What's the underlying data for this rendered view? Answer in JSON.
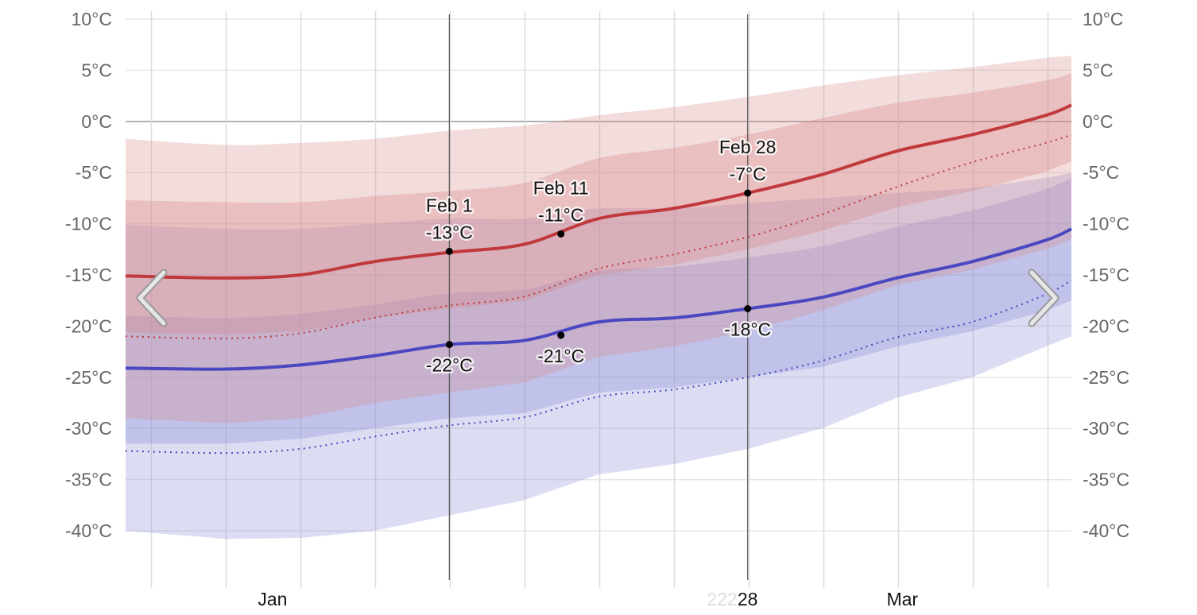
{
  "chart_data": {
    "type": "area",
    "title": "",
    "xlabel": "",
    "ylabel": "",
    "ylim": [
      -40,
      10
    ],
    "y_ticks": [
      "10°C",
      "5°C",
      "0°C",
      "-5°C",
      "-10°C",
      "-15°C",
      "-20°C",
      "-25°C",
      "-30°C",
      "-35°C",
      "-40°C"
    ],
    "y_tick_values": [
      10,
      5,
      0,
      -5,
      -10,
      -15,
      -20,
      -25,
      -30,
      -35,
      -40
    ],
    "x_ticks": [
      {
        "label": "Jan",
        "day": 16
      },
      {
        "label": "28",
        "day": 59,
        "ghost": "222"
      },
      {
        "label": "Mar",
        "day": 73
      }
    ],
    "x_day_range": [
      2.7,
      88.3
    ],
    "days": [
      2.7,
      11.8,
      18.5,
      25.2,
      32,
      38.8,
      45.5,
      52.3,
      59,
      65.7,
      72.5,
      79.3,
      86,
      88.3
    ],
    "series": [
      {
        "name": "high_p90",
        "values": [
          -1.7,
          -2.3,
          -2.1,
          -1.7,
          -0.9,
          -0.4,
          0.6,
          1.4,
          2.4,
          3.5,
          4.5,
          5.3,
          6.2,
          6.4
        ]
      },
      {
        "name": "high_p75",
        "values": [
          -7.7,
          -7.9,
          -7.9,
          -7.3,
          -6.8,
          -6,
          -3.6,
          -2.6,
          -1.3,
          0.3,
          1.8,
          2.8,
          4,
          4.7
        ]
      },
      {
        "name": "high_avg",
        "values": [
          -15.1,
          -15.3,
          -15,
          -13.7,
          -12.8,
          -12,
          -9.5,
          -8.5,
          -7,
          -5.2,
          -2.9,
          -1.3,
          0.6,
          1.6
        ]
      },
      {
        "name": "high_p25",
        "values": [
          -20.6,
          -20.8,
          -20.5,
          -19.2,
          -18.3,
          -17.5,
          -15,
          -14,
          -12.5,
          -10.7,
          -8.4,
          -6.8,
          -4.9,
          -3.9
        ]
      },
      {
        "name": "high_p10",
        "values": [
          -29,
          -29.5,
          -29,
          -27.5,
          -26.5,
          -25.5,
          -23,
          -22,
          -20.5,
          -18.5,
          -16,
          -14.5,
          -12.5,
          -11.5
        ]
      },
      {
        "name": "high_dotted",
        "values": [
          -21,
          -21.2,
          -20.7,
          -19.2,
          -18,
          -17.1,
          -14.4,
          -13,
          -11.3,
          -9.1,
          -6.4,
          -4,
          -2.1,
          -1.3
        ]
      },
      {
        "name": "low_p90",
        "values": [
          -10.1,
          -10.5,
          -10.5,
          -10,
          -9.5,
          -9.5,
          -8.5,
          -8.5,
          -8,
          -7.5,
          -7,
          -6.5,
          -5.5,
          -5
        ]
      },
      {
        "name": "low_p75",
        "values": [
          -19,
          -19.2,
          -18.8,
          -17.9,
          -16.8,
          -16.4,
          -14.6,
          -14.2,
          -13.3,
          -12.2,
          -10.3,
          -8.7,
          -6.6,
          -5.5
        ]
      },
      {
        "name": "low_avg",
        "values": [
          -24.1,
          -24.2,
          -23.8,
          -22.9,
          -21.8,
          -21.4,
          -19.6,
          -19.2,
          -18.3,
          -17.2,
          -15.3,
          -13.7,
          -11.6,
          -10.5
        ]
      },
      {
        "name": "low_p25",
        "values": [
          -31.5,
          -31.5,
          -31,
          -30,
          -29,
          -28.5,
          -26.5,
          -26,
          -25,
          -24,
          -22,
          -20.5,
          -18.5,
          -17.5
        ]
      },
      {
        "name": "low_p10",
        "values": [
          -40,
          -40.8,
          -40.7,
          -40,
          -38.5,
          -37,
          -34.5,
          -33.5,
          -32,
          -30,
          -27,
          -25,
          -22,
          -21
        ]
      },
      {
        "name": "low_dotted",
        "values": [
          -32.2,
          -32.4,
          -32,
          -30.8,
          -29.7,
          -28.9,
          -26.9,
          -26.2,
          -25,
          -23.4,
          -21.1,
          -19.6,
          -16.9,
          -15.5
        ]
      }
    ],
    "annotations": [
      {
        "day": 32,
        "date": "Feb 1",
        "high": -12.7,
        "high_label": "-13°C",
        "low": -21.8,
        "low_label": "-22°C"
      },
      {
        "day": 42.1,
        "date": "Feb 11",
        "high": -11,
        "high_label": "-11°C",
        "low": -20.9,
        "low_label": "-21°C"
      },
      {
        "day": 59,
        "date": "Feb 28",
        "high": -7,
        "high_label": "-7°C",
        "low": -18.3,
        "low_label": "-18°C"
      }
    ],
    "marker_lines_days": [
      32,
      59
    ],
    "colors": {
      "high": "#c0393b",
      "low": "#4a47c0",
      "high_band": "#d88a8c",
      "low_band": "#8c8fd8"
    }
  },
  "nav": {
    "prev_icon": "chevron-left-icon",
    "next_icon": "chevron-right-icon"
  }
}
